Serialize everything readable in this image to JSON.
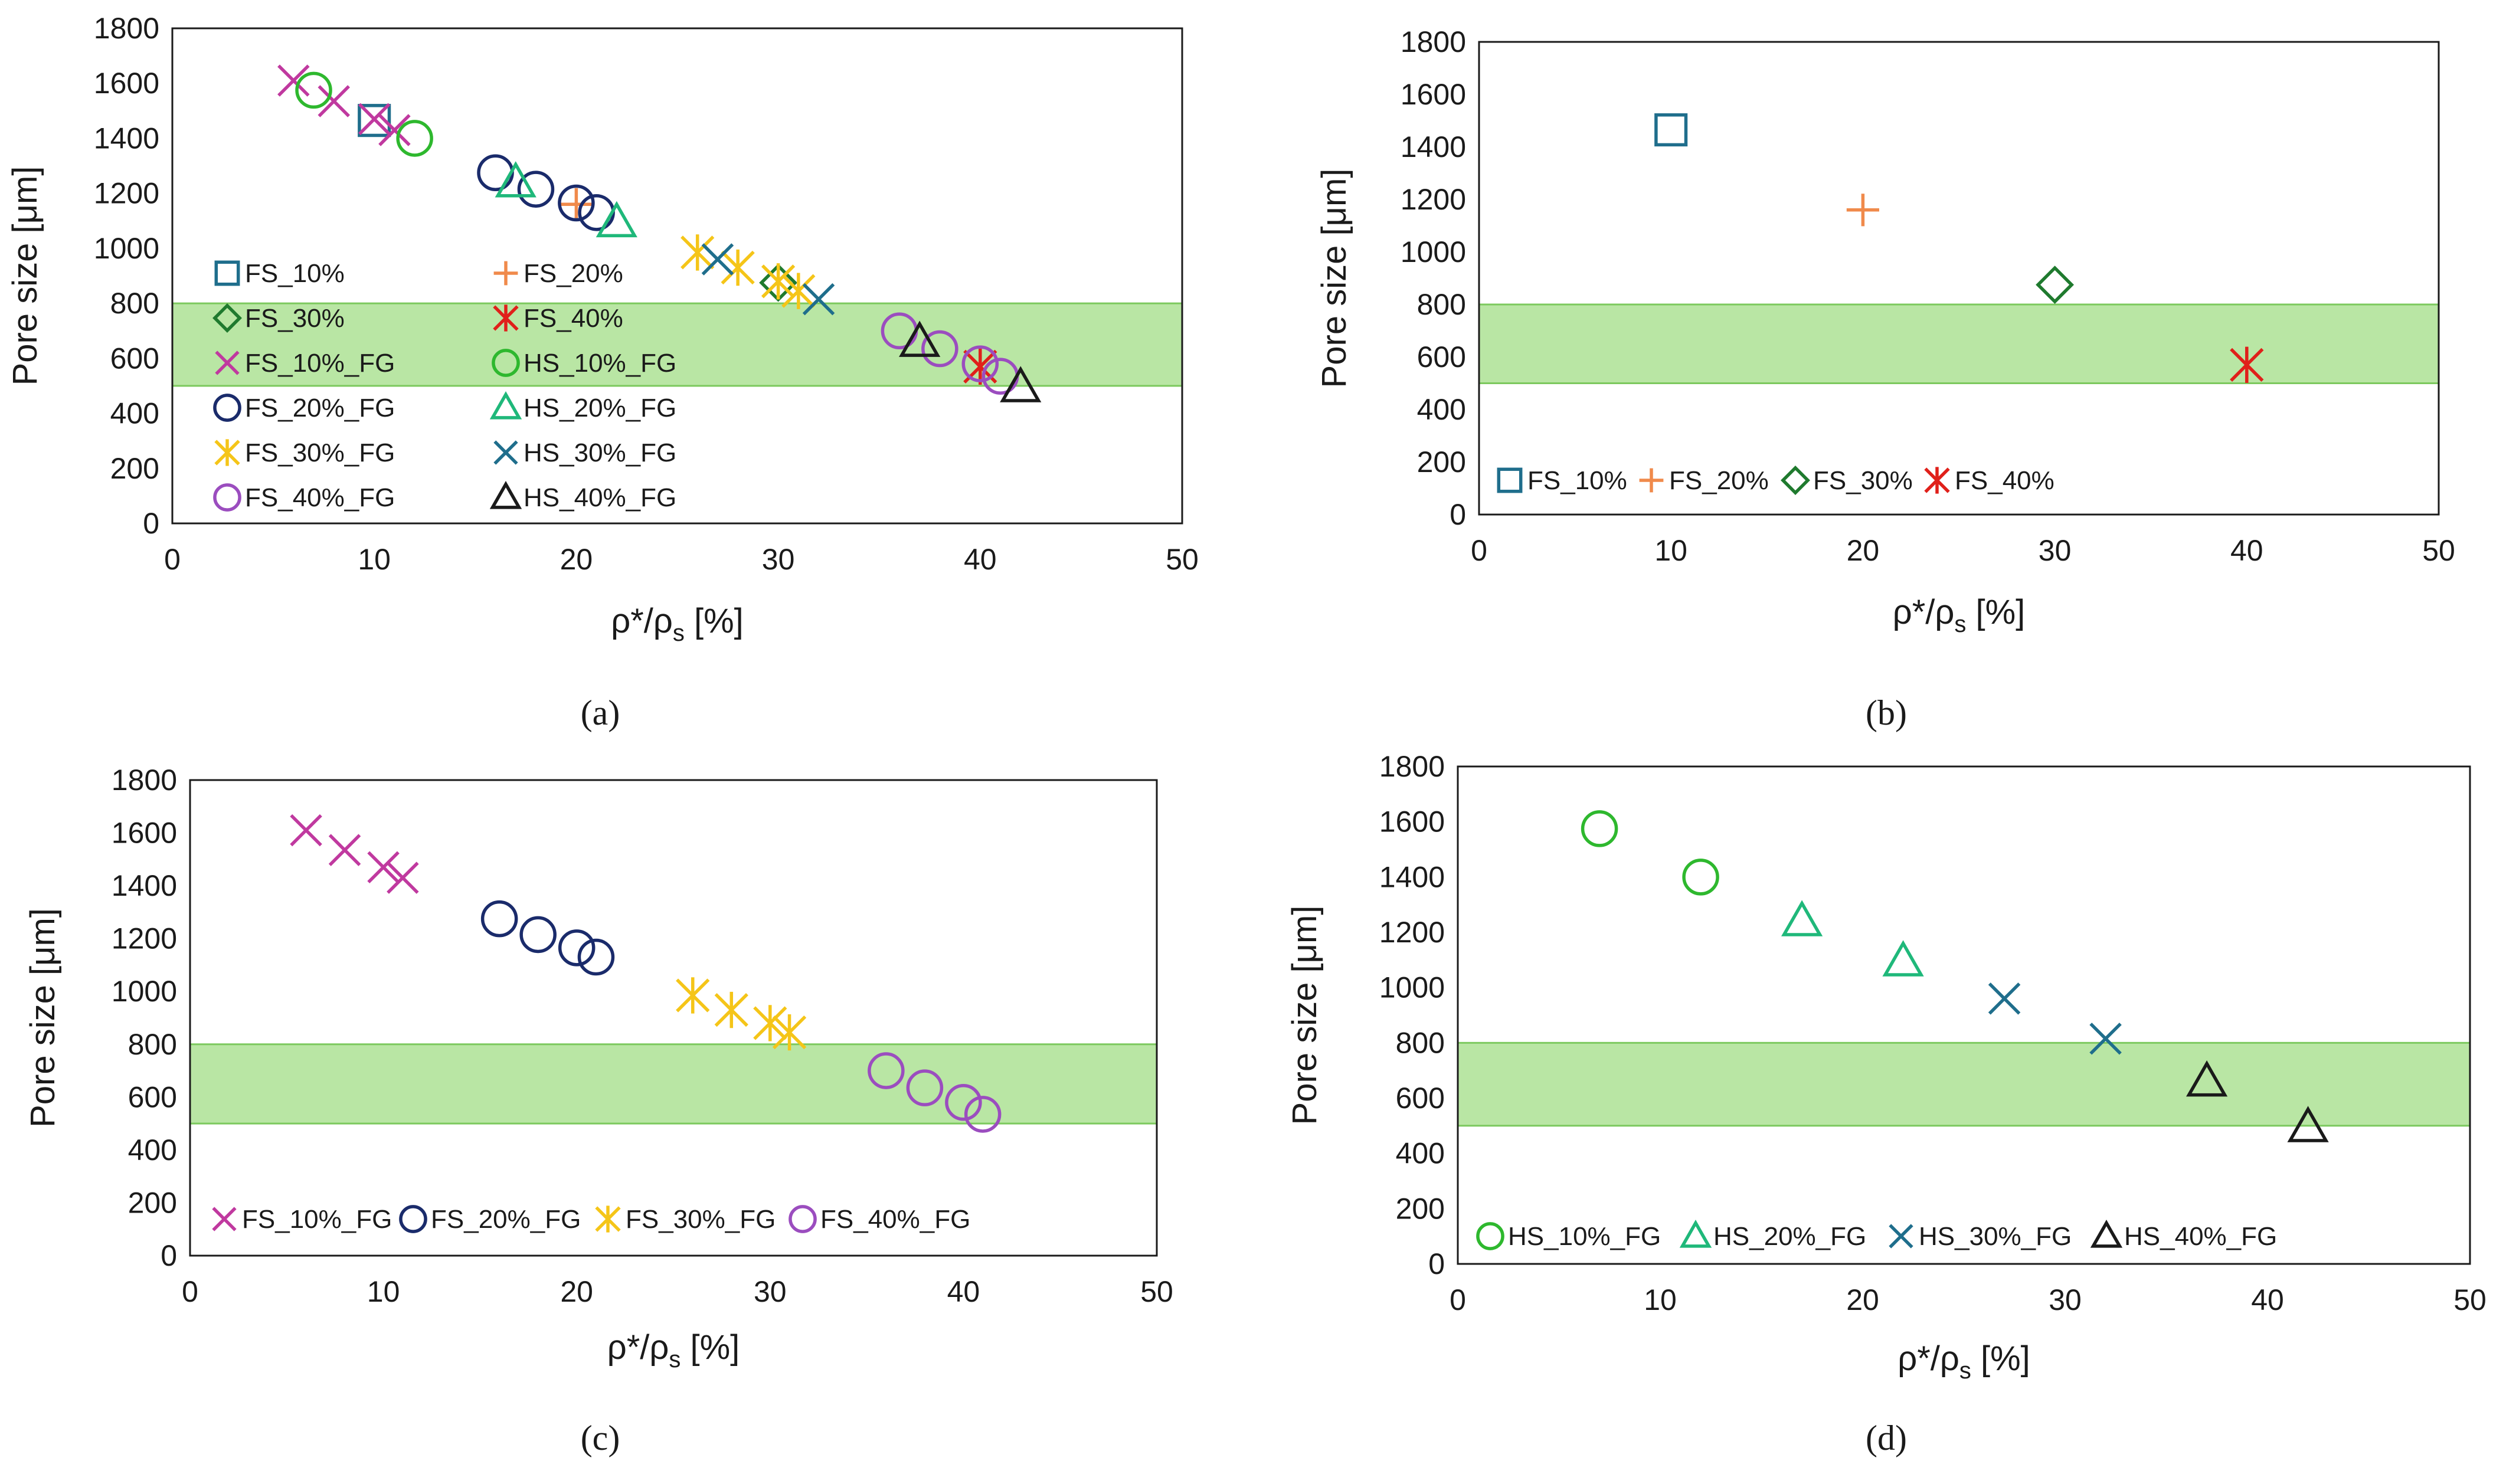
{
  "chart_data": [
    {
      "type": "scatter",
      "panel_label": "(a)",
      "xlabel": "ρ*/ρs [%]",
      "ylabel": "Pore size [μm]",
      "xlim": [
        0,
        50
      ],
      "ylim": [
        0,
        1800
      ],
      "x_ticks": [
        0,
        10,
        20,
        30,
        40,
        50
      ],
      "y_ticks": [
        0,
        200,
        400,
        600,
        800,
        1000,
        1200,
        1400,
        1600,
        1800
      ],
      "band": [
        500,
        800
      ],
      "legend_columns": 2,
      "series": [
        {
          "name": "FS_10%",
          "marker": "square",
          "color": "#1f6e8c",
          "points": [
            [
              10,
              1465
            ]
          ]
        },
        {
          "name": "FS_20%",
          "marker": "plus",
          "color": "#f08a4b",
          "points": [
            [
              20,
              1160
            ]
          ]
        },
        {
          "name": "FS_30%",
          "marker": "diamond",
          "color": "#1f7a2e",
          "points": [
            [
              30,
              875
            ]
          ]
        },
        {
          "name": "FS_40%",
          "marker": "asterisk",
          "color": "#e0201a",
          "points": [
            [
              40,
              570
            ]
          ]
        },
        {
          "name": "FS_10%_FG",
          "marker": "x",
          "color": "#c0399f",
          "points": [
            [
              6,
              1610
            ],
            [
              8,
              1535
            ],
            [
              10,
              1470
            ],
            [
              11,
              1430
            ]
          ]
        },
        {
          "name": "HS_10%_FG",
          "marker": "circle",
          "color": "#2eb82e",
          "points": [
            [
              7,
              1575
            ],
            [
              12,
              1400
            ]
          ]
        },
        {
          "name": "FS_20%_FG",
          "marker": "circle",
          "color": "#1a2b6b",
          "points": [
            [
              16,
              1275
            ],
            [
              18,
              1215
            ],
            [
              20,
              1165
            ],
            [
              21,
              1130
            ]
          ]
        },
        {
          "name": "HS_20%_FG",
          "marker": "triangle",
          "color": "#1fb87a",
          "points": [
            [
              17,
              1240
            ],
            [
              22,
              1095
            ]
          ]
        },
        {
          "name": "FS_30%_FG",
          "marker": "asterisk",
          "color": "#f5c518",
          "points": [
            [
              26,
              985
            ],
            [
              28,
              930
            ],
            [
              30,
              880
            ],
            [
              31,
              845
            ]
          ]
        },
        {
          "name": "HS_30%_FG",
          "marker": "x",
          "color": "#1f6e8c",
          "points": [
            [
              27,
              960
            ],
            [
              32,
              815
            ]
          ]
        },
        {
          "name": "FS_40%_FG",
          "marker": "circle",
          "color": "#9b4dbf",
          "points": [
            [
              36,
              700
            ],
            [
              38,
              635
            ],
            [
              40,
              580
            ],
            [
              41,
              535
            ]
          ]
        },
        {
          "name": "HS_40%_FG",
          "marker": "triangle",
          "color": "#1a1a1a",
          "points": [
            [
              37,
              660
            ],
            [
              42,
              495
            ]
          ]
        }
      ]
    },
    {
      "type": "scatter",
      "panel_label": "(b)",
      "xlabel": "ρ*/ρs [%]",
      "ylabel": "Pore size [μm]",
      "xlim": [
        0,
        50
      ],
      "ylim": [
        0,
        1800
      ],
      "x_ticks": [
        0,
        10,
        20,
        30,
        40,
        50
      ],
      "y_ticks": [
        0,
        200,
        400,
        600,
        800,
        1000,
        1200,
        1400,
        1600,
        1800
      ],
      "band": [
        500,
        800
      ],
      "legend_columns": 4,
      "series": [
        {
          "name": "FS_10%",
          "marker": "square",
          "color": "#1f6e8c",
          "points": [
            [
              10,
              1465
            ]
          ]
        },
        {
          "name": "FS_20%",
          "marker": "plus",
          "color": "#f08a4b",
          "points": [
            [
              20,
              1160
            ]
          ]
        },
        {
          "name": "FS_30%",
          "marker": "diamond",
          "color": "#1f7a2e",
          "points": [
            [
              30,
              875
            ]
          ]
        },
        {
          "name": "FS_40%",
          "marker": "asterisk",
          "color": "#e0201a",
          "points": [
            [
              40,
              570
            ]
          ]
        }
      ]
    },
    {
      "type": "scatter",
      "panel_label": "(c)",
      "xlabel": "ρ*/ρs [%]",
      "ylabel": "Pore size [μm]",
      "xlim": [
        0,
        50
      ],
      "ylim": [
        0,
        1800
      ],
      "x_ticks": [
        0,
        10,
        20,
        30,
        40,
        50
      ],
      "y_ticks": [
        0,
        200,
        400,
        600,
        800,
        1000,
        1200,
        1400,
        1600,
        1800
      ],
      "band": [
        500,
        800
      ],
      "legend_columns": 4,
      "series": [
        {
          "name": "FS_10%_FG",
          "marker": "x",
          "color": "#c0399f",
          "points": [
            [
              6,
              1610
            ],
            [
              8,
              1535
            ],
            [
              10,
              1470
            ],
            [
              11,
              1430
            ]
          ]
        },
        {
          "name": "FS_20%_FG",
          "marker": "circle",
          "color": "#1a2b6b",
          "points": [
            [
              16,
              1275
            ],
            [
              18,
              1215
            ],
            [
              20,
              1165
            ],
            [
              21,
              1130
            ]
          ]
        },
        {
          "name": "FS_30%_FG",
          "marker": "asterisk",
          "color": "#f5c518",
          "points": [
            [
              26,
              985
            ],
            [
              28,
              930
            ],
            [
              30,
              880
            ],
            [
              31,
              845
            ]
          ]
        },
        {
          "name": "FS_40%_FG",
          "marker": "circle",
          "color": "#9b4dbf",
          "points": [
            [
              36,
              700
            ],
            [
              38,
              635
            ],
            [
              40,
              580
            ],
            [
              41,
              535
            ]
          ]
        }
      ]
    },
    {
      "type": "scatter",
      "panel_label": "(d)",
      "xlabel": "ρ*/ρs [%]",
      "ylabel": "Pore size [μm]",
      "xlim": [
        0,
        50
      ],
      "ylim": [
        0,
        1800
      ],
      "x_ticks": [
        0,
        10,
        20,
        30,
        40,
        50
      ],
      "y_ticks": [
        0,
        200,
        400,
        600,
        800,
        1000,
        1200,
        1400,
        1600,
        1800
      ],
      "band": [
        500,
        800
      ],
      "legend_columns": 4,
      "series": [
        {
          "name": "HS_10%_FG",
          "marker": "circle",
          "color": "#2eb82e",
          "points": [
            [
              7,
              1575
            ],
            [
              12,
              1400
            ]
          ]
        },
        {
          "name": "HS_20%_FG",
          "marker": "triangle",
          "color": "#1fb87a",
          "points": [
            [
              17,
              1240
            ],
            [
              22,
              1095
            ]
          ]
        },
        {
          "name": "HS_30%_FG",
          "marker": "x",
          "color": "#1f6e8c",
          "points": [
            [
              27,
              960
            ],
            [
              32,
              815
            ]
          ]
        },
        {
          "name": "HS_40%_FG",
          "marker": "triangle",
          "color": "#1a1a1a",
          "points": [
            [
              37,
              660
            ],
            [
              42,
              495
            ]
          ]
        }
      ]
    }
  ]
}
